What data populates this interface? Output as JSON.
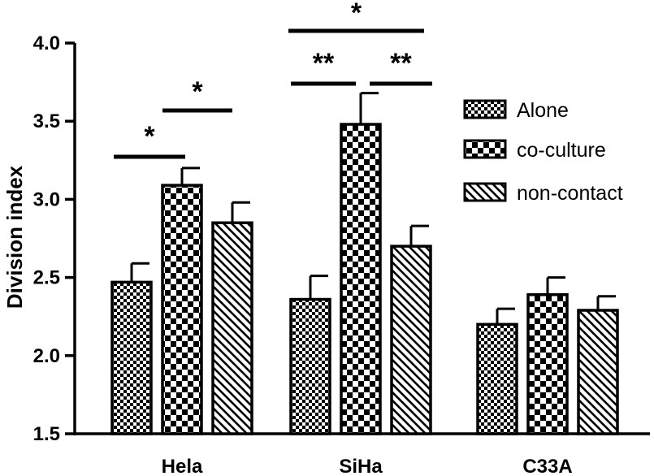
{
  "chart_data": {
    "type": "bar",
    "title": "",
    "xlabel": "",
    "ylabel": "Division index",
    "ylim": [
      1.5,
      4.0
    ],
    "yticks": [
      "1.5",
      "2.0",
      "2.5",
      "3.0",
      "3.5",
      "4.0"
    ],
    "grid": false,
    "legend_position": "right",
    "categories": [
      "Hela",
      "SiHa",
      "C33A"
    ],
    "series": [
      {
        "name": "Alone",
        "pattern": "fine-check",
        "values": [
          2.47,
          2.36,
          2.2
        ],
        "errors": [
          0.12,
          0.15,
          0.1
        ]
      },
      {
        "name": "co-culture",
        "pattern": "coarse-check",
        "values": [
          3.09,
          3.48,
          2.39
        ],
        "errors": [
          0.11,
          0.2,
          0.11
        ]
      },
      {
        "name": "non-contact",
        "pattern": "diagonal-stripes",
        "values": [
          2.85,
          2.7,
          2.29
        ],
        "errors": [
          0.13,
          0.13,
          0.09
        ]
      }
    ],
    "significance": [
      {
        "category": "Hela",
        "from": "Alone",
        "to": "co-culture",
        "label": "*"
      },
      {
        "category": "Hela",
        "from": "co-culture",
        "to": "non-contact",
        "label": "*"
      },
      {
        "category": "SiHa",
        "from": "Alone",
        "to": "co-culture",
        "label": "**"
      },
      {
        "category": "SiHa",
        "from": "co-culture",
        "to": "non-contact",
        "label": "**"
      },
      {
        "category": "SiHa",
        "from": "Alone",
        "to": "non-contact",
        "label": "*"
      }
    ]
  }
}
